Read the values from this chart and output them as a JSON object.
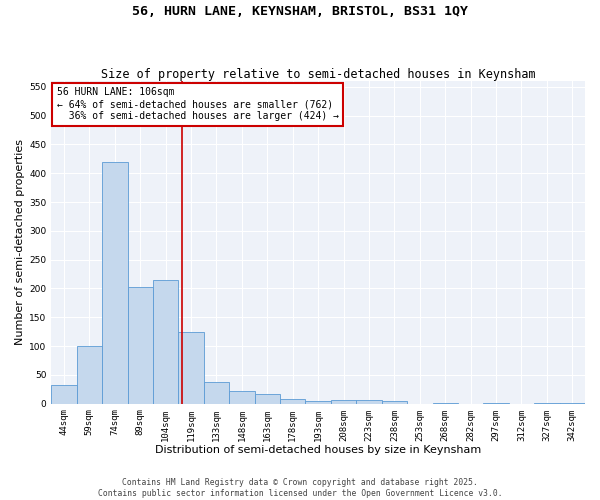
{
  "title_line1": "56, HURN LANE, KEYNSHAM, BRISTOL, BS31 1QY",
  "title_line2": "Size of property relative to semi-detached houses in Keynsham",
  "xlabel": "Distribution of semi-detached houses by size in Keynsham",
  "ylabel": "Number of semi-detached properties",
  "categories": [
    "44sqm",
    "59sqm",
    "74sqm",
    "89sqm",
    "104sqm",
    "119sqm",
    "133sqm",
    "148sqm",
    "163sqm",
    "178sqm",
    "193sqm",
    "208sqm",
    "223sqm",
    "238sqm",
    "253sqm",
    "268sqm",
    "282sqm",
    "297sqm",
    "312sqm",
    "327sqm",
    "342sqm"
  ],
  "values": [
    33,
    100,
    420,
    203,
    215,
    125,
    38,
    22,
    17,
    9,
    5,
    7,
    7,
    5,
    0,
    2,
    0,
    2,
    0,
    2,
    2
  ],
  "bar_color": "#c5d8ed",
  "bar_edge_color": "#5b9bd5",
  "vline_x": 4.65,
  "vline_color": "#cc0000",
  "annotation_line1": "56 HURN LANE: 106sqm",
  "annotation_line2": "← 64% of semi-detached houses are smaller (762)",
  "annotation_line3": "  36% of semi-detached houses are larger (424) →",
  "annotation_edge_color": "#cc0000",
  "ylim": [
    0,
    560
  ],
  "yticks": [
    0,
    50,
    100,
    150,
    200,
    250,
    300,
    350,
    400,
    450,
    500,
    550
  ],
  "bg_color": "#eef2f9",
  "footer_text": "Contains HM Land Registry data © Crown copyright and database right 2025.\nContains public sector information licensed under the Open Government Licence v3.0.",
  "title_fontsize": 9.5,
  "subtitle_fontsize": 8.5,
  "axis_label_fontsize": 8,
  "tick_fontsize": 6.5,
  "annotation_fontsize": 7,
  "footer_fontsize": 5.8
}
